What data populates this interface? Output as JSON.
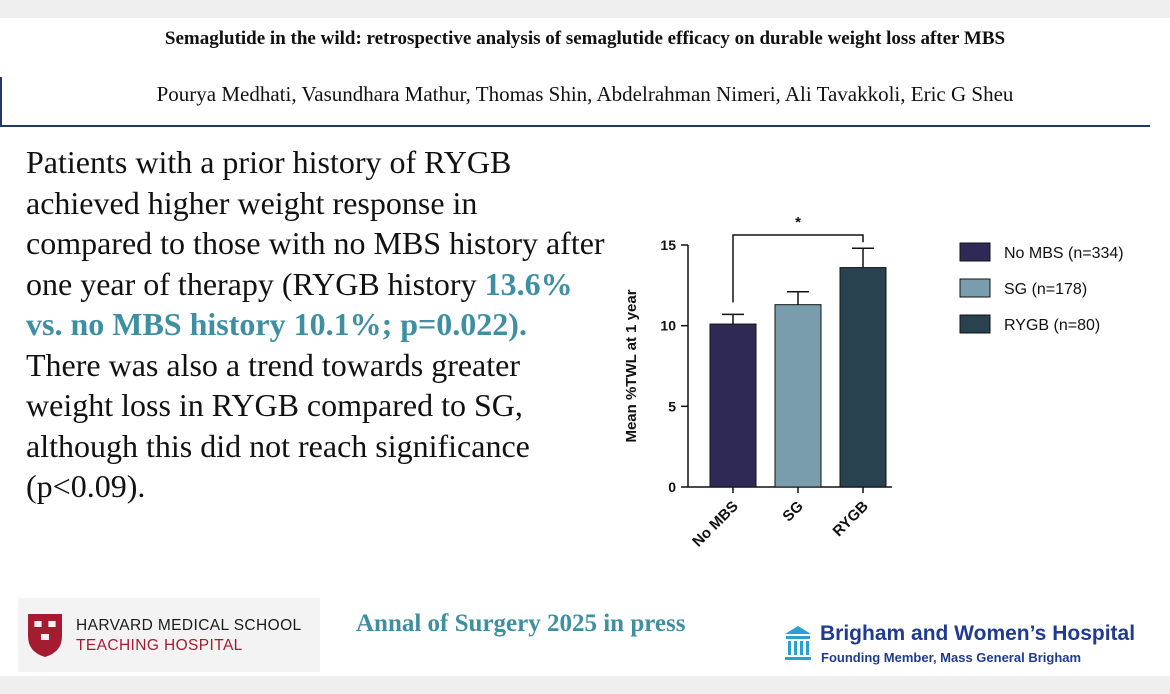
{
  "header": {
    "title": "Semaglutide in the wild: retrospective analysis of semaglutide efficacy on durable weight loss after MBS",
    "authors": "Pourya Medhati, Vasundhara Mathur, Thomas Shin, Abdelrahman Nimeri, Ali Tavakkoli, Eric G Sheu"
  },
  "summary": {
    "part1": "Patients with a prior history of RYGB achieved higher weight response in compared to those with no MBS history after one year of therapy (RYGB history ",
    "highlight": "13.6% vs. no MBS history 10.1%; p=0.022).",
    "part2": "There was also a trend towards greater weight loss in RYGB compared to SG, although this did not reach significance (p<0.09)."
  },
  "chart_data": {
    "type": "bar",
    "categories": [
      "No MBS",
      "SG",
      "RYGB"
    ],
    "values": [
      10.1,
      11.3,
      13.6
    ],
    "error_upper": [
      10.7,
      12.1,
      14.8
    ],
    "ylabel": "Mean %TWL at 1 year",
    "ylim": [
      0,
      15
    ],
    "yticks": [
      0,
      5,
      10,
      15
    ],
    "legend": [
      "No MBS (n=334)",
      "SG (n=178)",
      "RYGB (n=80)"
    ],
    "colors": [
      "#2f2a55",
      "#7a9dae",
      "#28434f"
    ],
    "significance": {
      "from": 0,
      "to": 2,
      "label": "*"
    }
  },
  "footer": {
    "hms_line1": "HARVARD MEDICAL SCHOOL",
    "hms_line2": "TEACHING HOSPITAL",
    "journal": "Annal of Surgery 2025 in press",
    "bwh_name": "Brigham and Women’s Hospital",
    "bwh_sub": "Founding Member, Mass General Brigham"
  }
}
